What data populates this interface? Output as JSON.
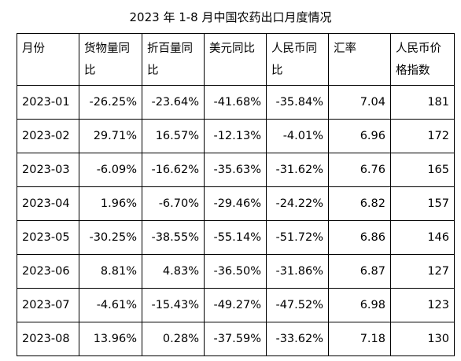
{
  "title": "2023 年 1-8 月中国农药出口月度情况",
  "table": {
    "headers": [
      "月份",
      "货物量同比",
      "折百量同比",
      "美元同比",
      "人民币同比",
      "汇率",
      "人民币价格指数"
    ],
    "rows": [
      [
        "2023-01",
        "-26.25%",
        "-23.64%",
        "-41.68%",
        "-35.84%",
        "7.04",
        "181"
      ],
      [
        "2023-02",
        "29.71%",
        "16.57%",
        "-12.13%",
        "-4.01%",
        "6.96",
        "172"
      ],
      [
        "2023-03",
        "-6.09%",
        "-16.62%",
        "-35.63%",
        "-31.62%",
        "6.76",
        "165"
      ],
      [
        "2023-04",
        "1.96%",
        "-6.70%",
        "-29.46%",
        "-24.22%",
        "6.82",
        "157"
      ],
      [
        "2023-05",
        "-30.25%",
        "-38.55%",
        "-55.14%",
        "-51.72%",
        "6.86",
        "146"
      ],
      [
        "2023-06",
        "8.81%",
        "4.83%",
        "-36.50%",
        "-31.86%",
        "6.87",
        "127"
      ],
      [
        "2023-07",
        "-4.61%",
        "-15.43%",
        "-49.27%",
        "-47.52%",
        "6.98",
        "123"
      ],
      [
        "2023-08",
        "13.96%",
        "0.28%",
        "-37.59%",
        "-33.62%",
        "7.18",
        "130"
      ]
    ]
  }
}
